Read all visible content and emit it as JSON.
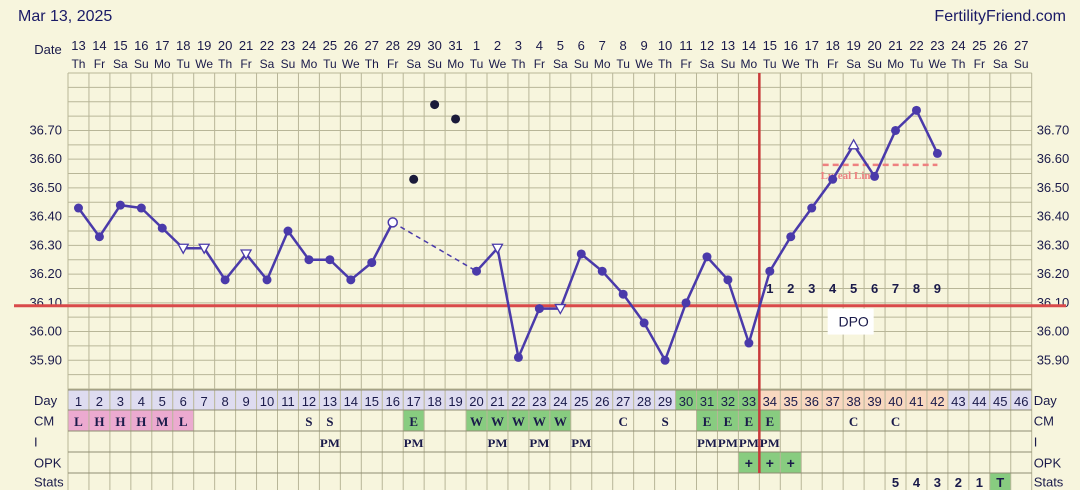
{
  "header": {
    "date": "Mar 13, 2025",
    "brand": "FertilityFriend.com"
  },
  "chart_data": {
    "type": "line",
    "row_labels": {
      "date": "Date",
      "day": "Day",
      "cm": "CM",
      "i": "I",
      "opk": "OPK",
      "stats": "Stats"
    },
    "dates": [
      "13",
      "14",
      "15",
      "16",
      "17",
      "18",
      "19",
      "20",
      "21",
      "22",
      "23",
      "24",
      "25",
      "26",
      "27",
      "28",
      "29",
      "30",
      "31",
      "1",
      "2",
      "3",
      "4",
      "5",
      "6",
      "7",
      "8",
      "9",
      "10",
      "11",
      "12",
      "13",
      "14",
      "15",
      "16",
      "17",
      "18",
      "19",
      "20",
      "21",
      "22",
      "23",
      "24",
      "25",
      "26",
      "27"
    ],
    "weekdays": [
      "Th",
      "Fr",
      "Sa",
      "Su",
      "Mo",
      "Tu",
      "We",
      "Th",
      "Fr",
      "Sa",
      "Su",
      "Mo",
      "Tu",
      "We",
      "Th",
      "Fr",
      "Sa",
      "Su",
      "Mo",
      "Tu",
      "We",
      "Th",
      "Fr",
      "Sa",
      "Su",
      "Mo",
      "Tu",
      "We",
      "Th",
      "Fr",
      "Sa",
      "Su",
      "Mo",
      "Tu",
      "We",
      "Th",
      "Fr",
      "Sa",
      "Su",
      "Mo",
      "Tu",
      "We",
      "Th",
      "Fr",
      "Sa",
      "Su"
    ],
    "cycle_days": [
      1,
      2,
      3,
      4,
      5,
      6,
      7,
      8,
      9,
      10,
      11,
      12,
      13,
      14,
      15,
      16,
      17,
      18,
      19,
      20,
      21,
      22,
      23,
      24,
      25,
      26,
      27,
      28,
      29,
      30,
      31,
      32,
      33,
      34,
      35,
      36,
      37,
      38,
      39,
      40,
      41,
      42,
      43,
      44,
      45,
      46
    ],
    "y_ticks": [
      "35.90",
      "36.00",
      "36.10",
      "36.20",
      "36.30",
      "36.40",
      "36.50",
      "36.60",
      "36.70"
    ],
    "ylim": [
      35.8,
      36.9
    ],
    "temperatures": [
      {
        "day": 1,
        "value": 36.43,
        "marker": "dot"
      },
      {
        "day": 2,
        "value": 36.33,
        "marker": "dot"
      },
      {
        "day": 3,
        "value": 36.44,
        "marker": "dot"
      },
      {
        "day": 4,
        "value": 36.43,
        "marker": "dot"
      },
      {
        "day": 5,
        "value": 36.36,
        "marker": "dot"
      },
      {
        "day": 6,
        "value": 36.29,
        "marker": "tri-down"
      },
      {
        "day": 7,
        "value": 36.29,
        "marker": "tri-down"
      },
      {
        "day": 8,
        "value": 36.18,
        "marker": "dot"
      },
      {
        "day": 9,
        "value": 36.27,
        "marker": "tri-down"
      },
      {
        "day": 10,
        "value": 36.18,
        "marker": "dot"
      },
      {
        "day": 11,
        "value": 36.35,
        "marker": "dot"
      },
      {
        "day": 12,
        "value": 36.25,
        "marker": "dot"
      },
      {
        "day": 13,
        "value": 36.25,
        "marker": "dot"
      },
      {
        "day": 14,
        "value": 36.18,
        "marker": "dot"
      },
      {
        "day": 15,
        "value": 36.24,
        "marker": "dot"
      },
      {
        "day": 16,
        "value": 36.38,
        "marker": "circle-open"
      },
      {
        "day": 20,
        "value": 36.21,
        "marker": "dot"
      },
      {
        "day": 21,
        "value": 36.29,
        "marker": "tri-down"
      },
      {
        "day": 22,
        "value": 35.91,
        "marker": "dot"
      },
      {
        "day": 23,
        "value": 36.08,
        "marker": "dot"
      },
      {
        "day": 24,
        "value": 36.08,
        "marker": "tri-down"
      },
      {
        "day": 25,
        "value": 36.27,
        "marker": "dot"
      },
      {
        "day": 26,
        "value": 36.21,
        "marker": "dot"
      },
      {
        "day": 27,
        "value": 36.13,
        "marker": "dot"
      },
      {
        "day": 28,
        "value": 36.03,
        "marker": "dot"
      },
      {
        "day": 29,
        "value": 35.9,
        "marker": "dot"
      },
      {
        "day": 30,
        "value": 36.1,
        "marker": "dot"
      },
      {
        "day": 31,
        "value": 36.26,
        "marker": "dot"
      },
      {
        "day": 32,
        "value": 36.18,
        "marker": "dot"
      },
      {
        "day": 33,
        "value": 35.96,
        "marker": "dot"
      },
      {
        "day": 34,
        "value": 36.21,
        "marker": "dot"
      },
      {
        "day": 35,
        "value": 36.33,
        "marker": "dot"
      },
      {
        "day": 36,
        "value": 36.43,
        "marker": "dot"
      },
      {
        "day": 37,
        "value": 36.53,
        "marker": "dot"
      },
      {
        "day": 38,
        "value": 36.65,
        "marker": "tri-up"
      },
      {
        "day": 39,
        "value": 36.54,
        "marker": "dot"
      },
      {
        "day": 40,
        "value": 36.7,
        "marker": "dot"
      },
      {
        "day": 41,
        "value": 36.77,
        "marker": "dot"
      },
      {
        "day": 42,
        "value": 36.62,
        "marker": "dot"
      }
    ],
    "excluded_temperatures": [
      {
        "day": 17,
        "value": 36.53
      },
      {
        "day": 18,
        "value": 36.79
      },
      {
        "day": 19,
        "value": 36.74
      }
    ],
    "coverline": 36.09,
    "ovulation_day": 33,
    "dpo_labels": [
      "1",
      "2",
      "3",
      "4",
      "5",
      "6",
      "7",
      "8",
      "9"
    ],
    "dpo_start_day": 34,
    "dpo_text": "DPO",
    "luteal_line": {
      "value": 36.58,
      "from_day": 37,
      "to_day": 42,
      "label": "Luteal Line"
    },
    "cm": {
      "1": "L",
      "2": "H",
      "3": "H",
      "4": "H",
      "5": "M",
      "6": "L",
      "12": "S",
      "13": "S",
      "17": "E",
      "20": "W",
      "21": "W",
      "22": "W",
      "23": "W",
      "24": "W",
      "27": "C",
      "29": "S",
      "31": "E",
      "32": "E",
      "33": "E",
      "34": "E",
      "38": "C",
      "40": "C"
    },
    "intercourse": {
      "13": "PM",
      "17": "PM",
      "21": "PM",
      "23": "PM",
      "25": "PM",
      "31": "PM",
      "32": "PM",
      "33": "PM",
      "34": "PM"
    },
    "opk": {
      "33": "+",
      "34": "+",
      "35": "+"
    },
    "stats": {
      "40": "5",
      "41": "4",
      "42": "3",
      "43": "2",
      "44": "1",
      "45": "T"
    },
    "colors": {
      "line": "#4a3aaa",
      "coverline": "#d94a4a",
      "ovulation": "#c83a3a",
      "grid": "#b8b698",
      "background": "#f7f5dd",
      "cm_pink": "#ecaad0",
      "fertile_green": "#88cc80",
      "luteal_orange": "#f8d8c0",
      "luteal_line": "#ee8080"
    }
  }
}
